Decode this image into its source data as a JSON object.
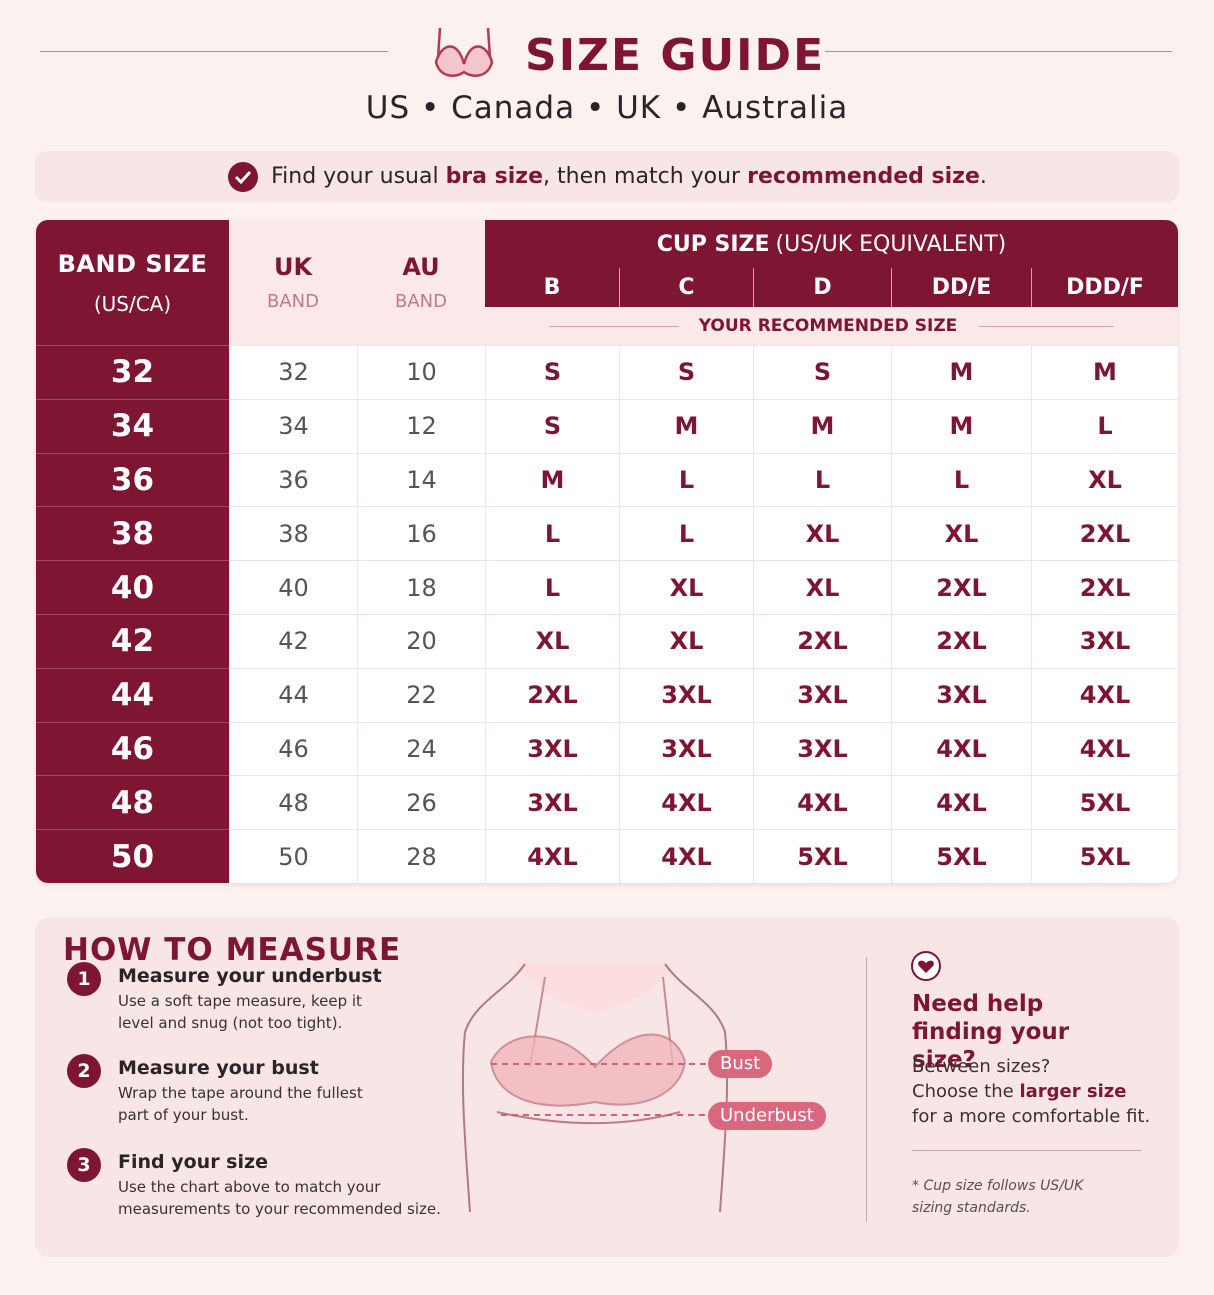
{
  "header": {
    "title": "SIZE GUIDE",
    "subtitle": "US • Canada • UK • Australia"
  },
  "notice": {
    "text_before": "Find your usual ",
    "bold_first": "bra size",
    "text_middle": ", then match your ",
    "bold_second": "recommended size",
    "text_end": "."
  },
  "table": {
    "band_header": {
      "title": "BAND SIZE",
      "sub": "(US/CA)"
    },
    "uk_header": {
      "title": "UK",
      "sub": "BAND"
    },
    "au_header": {
      "title": "AU",
      "sub": "BAND"
    },
    "cup_header": {
      "title": "CUP SIZE",
      "sub": "(US/UK EQUIVALENT)"
    },
    "cups": [
      "B",
      "C",
      "D",
      "DD/E",
      "DDD/F"
    ],
    "recommended_label": "YOUR RECOMMENDED SIZE",
    "rows": [
      [
        32,
        32,
        10,
        "S",
        "S",
        "S",
        "M",
        "M"
      ],
      [
        34,
        34,
        12,
        "S",
        "M",
        "M",
        "M",
        "L"
      ],
      [
        36,
        36,
        14,
        "M",
        "L",
        "L",
        "L",
        "XL"
      ],
      [
        38,
        38,
        16,
        "L",
        "L",
        "XL",
        "XL",
        "2XL"
      ],
      [
        40,
        40,
        18,
        "L",
        "XL",
        "XL",
        "2XL",
        "2XL"
      ],
      [
        42,
        42,
        20,
        "XL",
        "XL",
        "2XL",
        "2XL",
        "3XL"
      ],
      [
        44,
        44,
        22,
        "2XL",
        "3XL",
        "3XL",
        "3XL",
        "4XL"
      ],
      [
        46,
        46,
        24,
        "3XL",
        "3XL",
        "3XL",
        "4XL",
        "4XL"
      ],
      [
        48,
        48,
        26,
        "3XL",
        "4XL",
        "4XL",
        "4XL",
        "5XL"
      ],
      [
        50,
        50,
        28,
        "4XL",
        "4XL",
        "5XL",
        "5XL",
        "5XL"
      ]
    ]
  },
  "measure": {
    "title": "HOW TO MEASURE",
    "steps": [
      {
        "number": 1,
        "title": "Measure your underbust",
        "text": "Use a soft tape measure, keep it level and snug (not too tight)."
      },
      {
        "number": 2,
        "title": "Measure your bust",
        "text": "Wrap the tape around the fullest part of your bust."
      },
      {
        "number": 3,
        "title": "Find your size",
        "text": "Use the chart above to match your measurements to your recommended size."
      }
    ],
    "diagram_labels": {
      "bust": "Bust",
      "underbust": "Underbust"
    }
  },
  "help": {
    "title": "Need help finding your size?",
    "line1": "Between sizes?",
    "text_before": "Choose the ",
    "bold": "larger size",
    "text_after": "for a more comfortable fit.",
    "footnote": "* Cup size follows US/UK sizing standards."
  }
}
